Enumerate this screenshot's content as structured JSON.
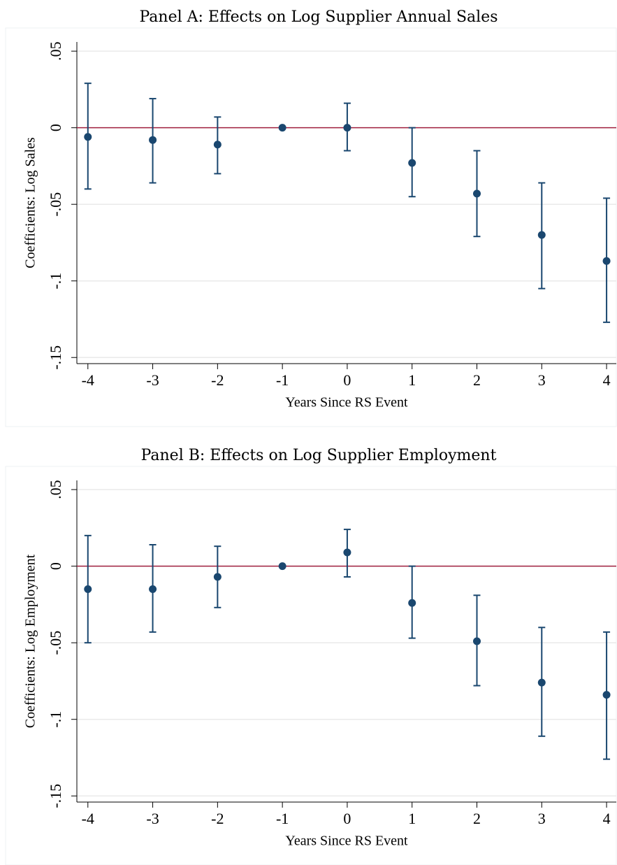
{
  "chart_data": [
    {
      "type": "errorbar",
      "title": "Panel A: Effects on Log Supplier Annual Sales",
      "xlabel": "Years Since RS Event",
      "ylabel": "Coefficients: Log Sales",
      "x": [
        -4,
        -3,
        -2,
        -1,
        0,
        1,
        2,
        3,
        4
      ],
      "values": [
        -0.006,
        -0.008,
        -0.011,
        0,
        0,
        -0.023,
        -0.043,
        -0.07,
        -0.087
      ],
      "lower": [
        -0.04,
        -0.036,
        -0.03,
        null,
        -0.015,
        -0.045,
        -0.071,
        -0.105,
        -0.127
      ],
      "upper": [
        0.029,
        0.019,
        0.007,
        null,
        0.016,
        0,
        -0.015,
        -0.036,
        -0.046
      ],
      "color": "#1a476f",
      "reference_line": 0,
      "reference_color": "#a0203f",
      "xlim": [
        -4.17,
        4.15
      ],
      "xticks": [
        -4,
        -3,
        -2,
        -1,
        0,
        1,
        2,
        3,
        4
      ],
      "ylim": [
        -0.154,
        0.056
      ],
      "yticks": [
        {
          "value": -0.15,
          "label": "-.15"
        },
        {
          "value": -0.1,
          "label": "-.1"
        },
        {
          "value": -0.05,
          "label": "-.05"
        },
        0,
        {
          "value": 0.05,
          "label": ".05"
        }
      ],
      "grid": true
    },
    {
      "type": "errorbar",
      "title": "Panel B: Effects on Log Supplier Employment",
      "xlabel": "Years Since RS Event",
      "ylabel": "Coefficients: Log Employment",
      "x": [
        -4,
        -3,
        -2,
        -1,
        0,
        1,
        2,
        3,
        4
      ],
      "values": [
        -0.015,
        -0.015,
        -0.007,
        0,
        0.009,
        -0.024,
        -0.049,
        -0.076,
        -0.084
      ],
      "lower": [
        -0.05,
        -0.043,
        -0.027,
        null,
        -0.007,
        -0.047,
        -0.078,
        -0.111,
        -0.126
      ],
      "upper": [
        0.02,
        0.014,
        0.013,
        null,
        0.024,
        0,
        -0.019,
        -0.04,
        -0.043
      ],
      "color": "#1a476f",
      "reference_line": 0,
      "reference_color": "#a0203f",
      "xlim": [
        -4.17,
        4.15
      ],
      "xticks": [
        -4,
        -3,
        -2,
        -1,
        0,
        1,
        2,
        3,
        4
      ],
      "ylim": [
        -0.154,
        0.056
      ],
      "yticks": [
        {
          "value": -0.15,
          "label": "-.15"
        },
        {
          "value": -0.1,
          "label": "-.1"
        },
        {
          "value": -0.05,
          "label": "-.05"
        },
        0,
        {
          "value": 0.05,
          "label": ".05"
        }
      ],
      "grid": true
    }
  ]
}
